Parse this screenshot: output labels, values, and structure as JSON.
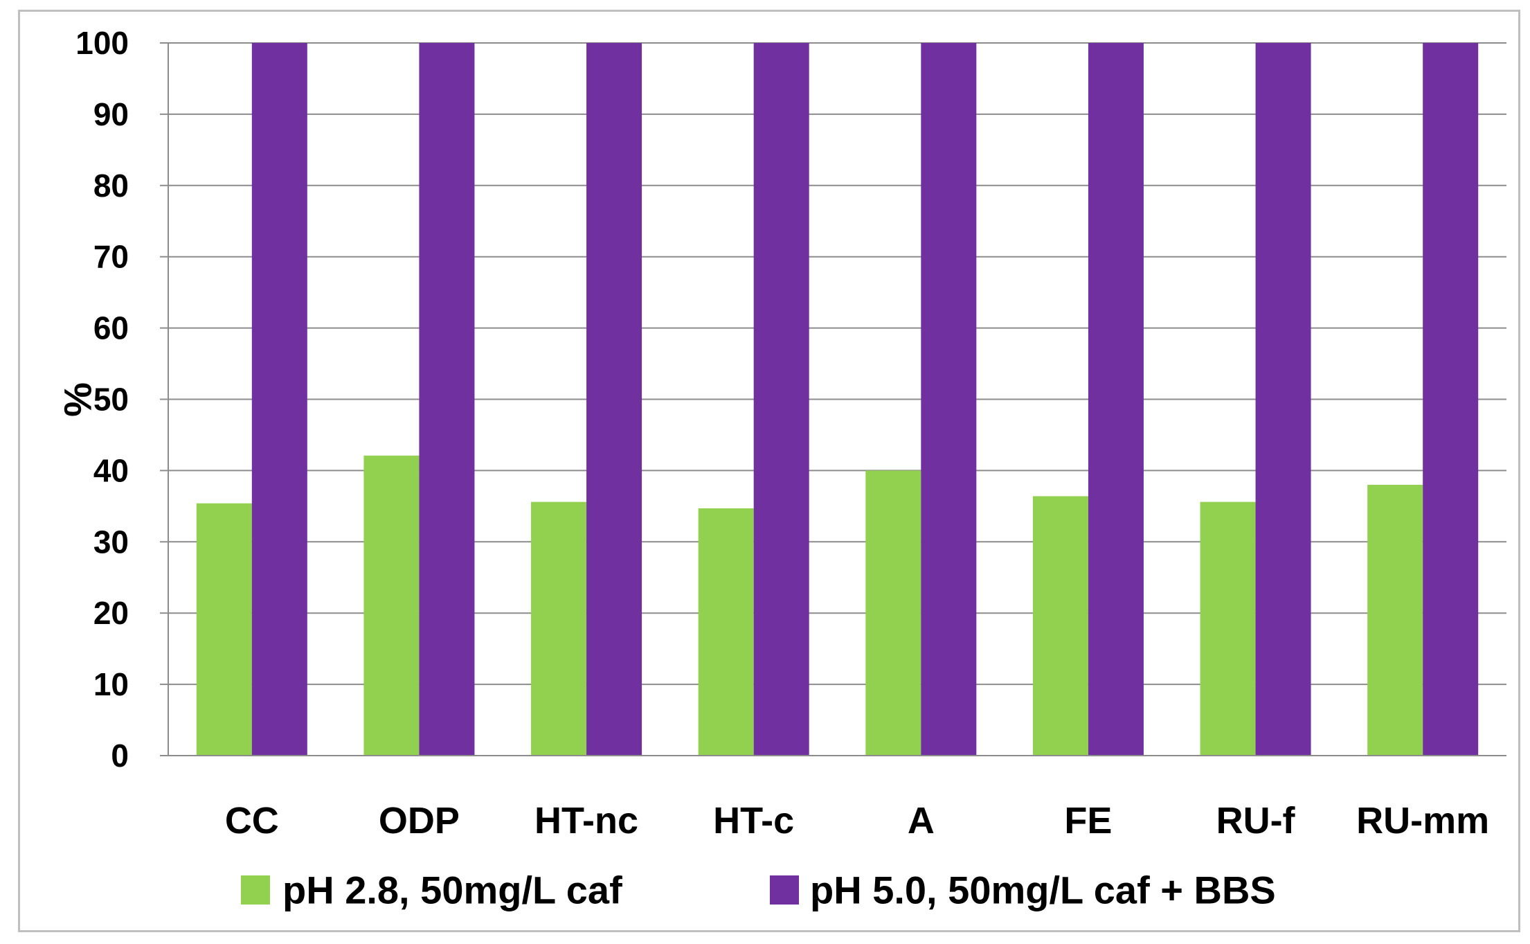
{
  "chart_data": {
    "type": "bar",
    "title": "",
    "xlabel": "",
    "ylabel": "%",
    "ylim": [
      0,
      100
    ],
    "yticks": [
      "0",
      "10",
      "20",
      "30",
      "40",
      "50",
      "60",
      "70",
      "80",
      "90",
      "100"
    ],
    "grid": true,
    "legend_position": "bottom",
    "categories": [
      "CC",
      "ODP",
      "HT-nc",
      "HT-c",
      "A",
      "FE",
      "RU-f",
      "RU-mm"
    ],
    "series": [
      {
        "name": "pH 2.8, 50mg/L caf",
        "color": "#92d050",
        "values": [
          35.4,
          42.1,
          35.6,
          34.7,
          40.0,
          36.4,
          35.6,
          38.0
        ]
      },
      {
        "name": "pH 5.0, 50mg/L caf + BBS",
        "color": "#7030a0",
        "values": [
          100,
          100,
          100,
          100,
          100,
          100,
          100,
          100
        ]
      }
    ]
  }
}
